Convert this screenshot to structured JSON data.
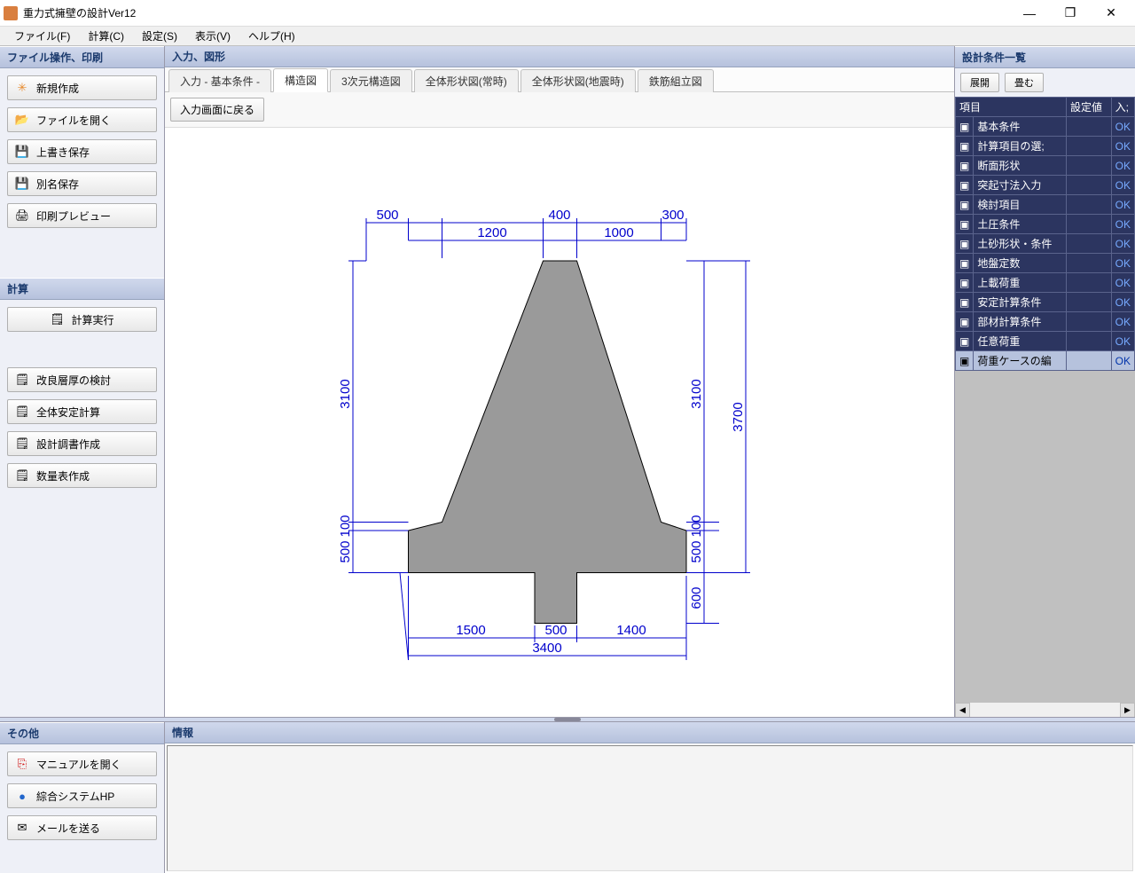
{
  "app": {
    "title": "重力式擁壁の設計Ver12"
  },
  "menubar": {
    "file": "ファイル(F)",
    "calc": "計算(C)",
    "settings": "設定(S)",
    "view": "表示(V)",
    "help": "ヘルプ(H)"
  },
  "left": {
    "file_ops_header": "ファイル操作、印刷",
    "btn_new": "新規作成",
    "btn_open": "ファイルを開く",
    "btn_save": "上書き保存",
    "btn_saveas": "別名保存",
    "btn_print": "印刷プレビュー",
    "calc_header": "計算",
    "btn_runcalc": "計算実行",
    "btn_layer": "改良層厚の検討",
    "btn_stability": "全体安定計算",
    "btn_report": "設計調書作成",
    "btn_quantity": "数量表作成",
    "other_header": "その他",
    "btn_manual": "マニュアルを開く",
    "btn_hp": "綜合システムHP",
    "btn_mail": "メールを送る"
  },
  "center": {
    "header": "入力、図形",
    "tabs": {
      "t1": "入力 - 基本条件 -",
      "t2": "構造図",
      "t3": "3次元構造図",
      "t4": "全体形状図(常時)",
      "t5": "全体形状図(地震時)",
      "t6": "鉄筋組立図"
    },
    "back_btn": "入力画面に戻る"
  },
  "drawing": {
    "dims": {
      "d500a": "500",
      "d1200": "1200",
      "d400": "400",
      "d1000": "1000",
      "d300": "300",
      "d3100l": "3100",
      "d100l": "100",
      "d500l": "500",
      "d3100r": "3100",
      "d100r": "100",
      "d500r": "500",
      "d3700": "3700",
      "d600": "600",
      "d1500": "1500",
      "d500b": "500",
      "d1400": "1400",
      "d3400": "3400"
    },
    "colors": {
      "dim": "#0000cc",
      "shape_fill": "#9a9a9a",
      "shape_stroke": "#000000",
      "bg": "#ffffff"
    }
  },
  "right": {
    "header": "設計条件一覧",
    "btn_expand": "展開",
    "btn_collapse": "畳む",
    "cols": {
      "item": "項目",
      "value": "設定値",
      "in": "入;"
    },
    "ok": "OK",
    "rows": [
      "基本条件",
      "計算項目の選;",
      "断面形状",
      "突起寸法入力",
      "検討項目",
      "土圧条件",
      "土砂形状・条件",
      "地盤定数",
      "上載荷重",
      "安定計算条件",
      "部材計算条件",
      "任意荷重",
      "荷重ケースの編"
    ]
  },
  "info": {
    "header": "情報"
  }
}
